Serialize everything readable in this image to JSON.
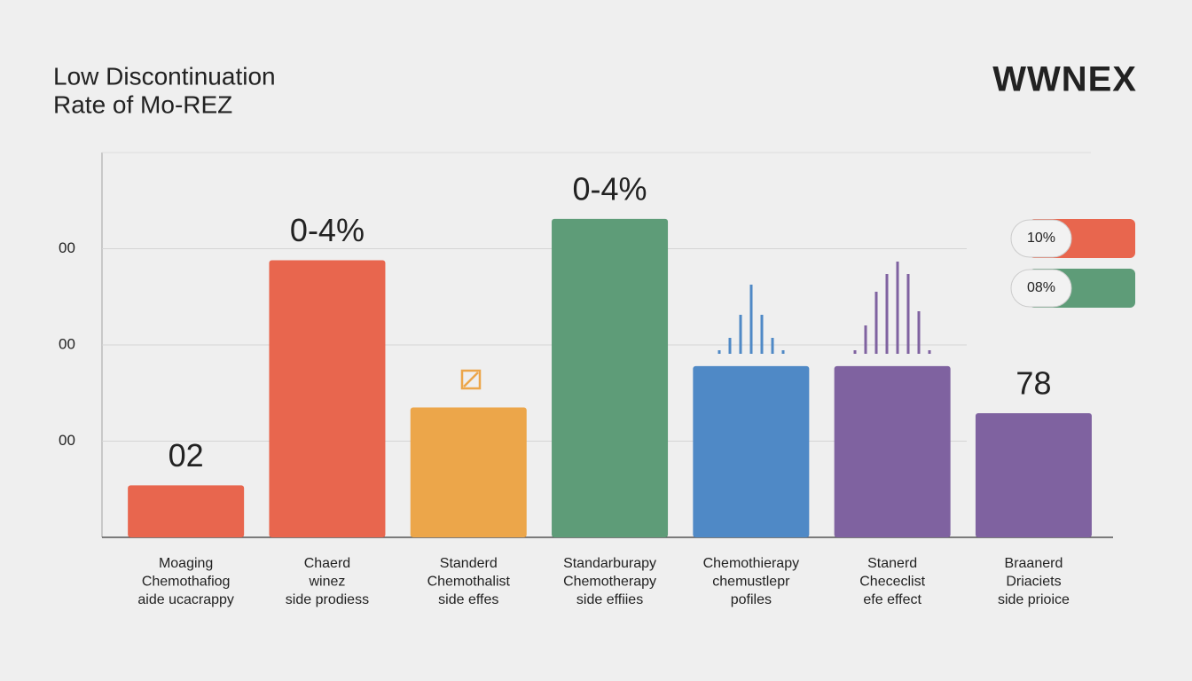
{
  "chart_data": {
    "type": "bar",
    "title_lines": [
      "Low Discontinuation",
      "Rate of Mo-REZ"
    ],
    "brand": "WWNEX",
    "categories": [
      [
        "Moaging",
        "Chemothafiog",
        "aide ucacrappy"
      ],
      [
        "Chaerd",
        "winez",
        "side prodiess"
      ],
      [
        "Standerd",
        "Chemothalist",
        "side effes"
      ],
      [
        "Standarburapy",
        "Chemotherapy",
        "side effiies"
      ],
      [
        "Chemothierapy",
        "chemustlepr",
        "pofiles"
      ],
      [
        "Stanerd",
        "Chececlist",
        "efe effect"
      ],
      [
        "Braanerd",
        "Driaciets",
        "side prioice"
      ]
    ],
    "values": [
      0.54,
      2.88,
      1.35,
      3.31,
      1.78,
      1.78,
      1.29
    ],
    "bar_labels": [
      "02",
      "0-4%",
      null,
      "0-4%",
      null,
      null,
      "78"
    ],
    "colors": [
      "#e8664e",
      "#e8664e",
      "#eca64a",
      "#5e9c78",
      "#4f89c6",
      "#7f62a0",
      "#7f62a0"
    ],
    "ylim": [
      0,
      4
    ],
    "yticks": [
      {
        "value": 1,
        "label": "00"
      },
      {
        "value": 2,
        "label": "00"
      },
      {
        "value": 3,
        "label": "00"
      }
    ],
    "grid": true,
    "legend": [
      {
        "label": "10%",
        "color": "#e8664e"
      },
      {
        "label": "08%",
        "color": "#5e9c78"
      }
    ]
  }
}
